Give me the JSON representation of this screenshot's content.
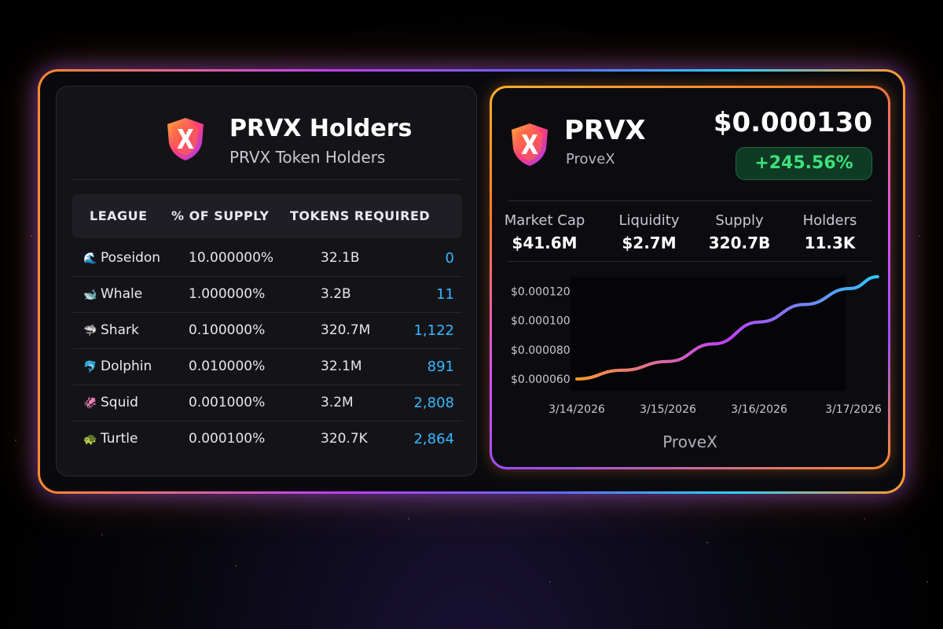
{
  "holders": {
    "title": "PRVX Holders",
    "subtitle": "PRVX Token Holders",
    "columns": [
      "LEAGUE",
      "% OF SUPPLY",
      "TOKENS REQUIRED"
    ],
    "rows": [
      {
        "icon": "🌊",
        "league": "Poseidon",
        "pct": "10.000000%",
        "tokens": "32.1B",
        "count": "0"
      },
      {
        "icon": "🐋",
        "league": "Whale",
        "pct": "1.000000%",
        "tokens": "3.2B",
        "count": "11"
      },
      {
        "icon": "🦈",
        "league": "Shark",
        "pct": "0.100000%",
        "tokens": "320.7M",
        "count": "1,122"
      },
      {
        "icon": "🐬",
        "league": "Dolphin",
        "pct": "0.010000%",
        "tokens": "32.1M",
        "count": "891"
      },
      {
        "icon": "🦑",
        "league": "Squid",
        "pct": "0.001000%",
        "tokens": "3.2M",
        "count": "2,808"
      },
      {
        "icon": "🐢",
        "league": "Turtle",
        "pct": "0.000100%",
        "tokens": "320.7K",
        "count": "2,864"
      }
    ]
  },
  "token": {
    "symbol": "PRVX",
    "name": "ProveX",
    "price": "$0.000130",
    "change": "+245.56%",
    "stats": [
      {
        "label": "Market Cap",
        "value": "$41.6M"
      },
      {
        "label": "Liquidity",
        "value": "$2.7M"
      },
      {
        "label": "Supply",
        "value": "320.7B"
      },
      {
        "label": "Holders",
        "value": "11.3K"
      }
    ],
    "footer": "ProveX"
  },
  "colors": {
    "accent_blue": "#38b6ff",
    "positive_green": "#3ee07a",
    "line_start": "#ff9a2a",
    "line_mid": "#c040ff",
    "line_end": "#2ac8ff"
  },
  "chart_data": {
    "type": "line",
    "x": [
      "3/14/2026",
      "3/15/2026",
      "3/16/2026",
      "3/17/2026"
    ],
    "y_ticks": [
      "$0.000060",
      "$0.000080",
      "$0.000100",
      "$0.000120"
    ],
    "ylim": [
      6e-05,
      0.00013
    ],
    "series": [
      {
        "x": [
          0,
          0.5,
          1,
          1.5,
          2,
          2.5,
          3,
          3.3
        ],
        "values": [
          6e-05,
          6.6e-05,
          7.2e-05,
          8.4e-05,
          9.9e-05,
          0.000111,
          0.000122,
          0.00013
        ]
      }
    ]
  }
}
